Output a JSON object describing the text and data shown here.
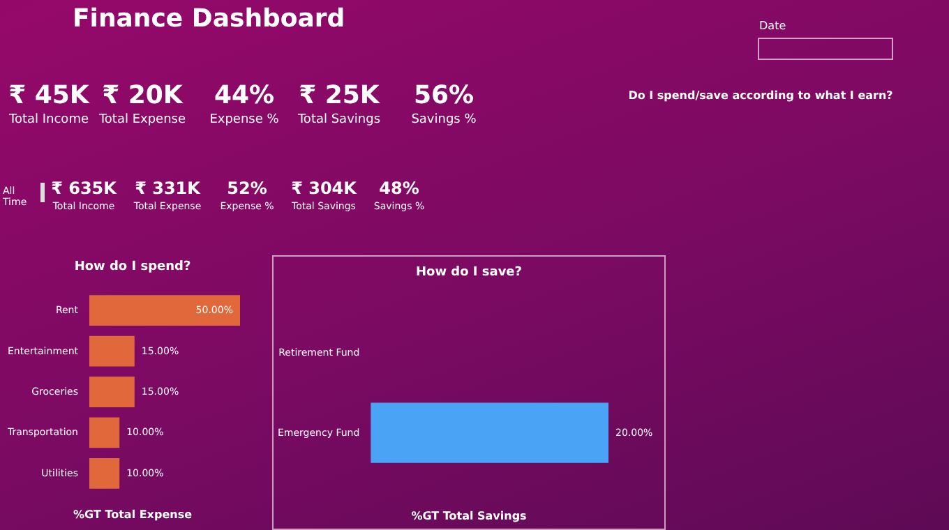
{
  "chart_data": [
    {
      "type": "other",
      "title": "Finance Dashboard",
      "annotations": [
        "₹ 45K",
        "Total Income",
        "₹ 20K",
        "Total Expense",
        "44%",
        "Expense %",
        "₹ 25K",
        "Total Savings",
        "56%",
        "Savings %",
        "All Time",
        "₹ 635K",
        "Total Income",
        "₹ 331K",
        "Total Expense",
        "52%",
        "Expense %",
        "₹ 304K",
        "Total Savings",
        "48%",
        "Savings %",
        "Date",
        "Do I spend/save according to what I earn?"
      ]
    },
    {
      "type": "bar",
      "orientation": "horizontal",
      "title": "How do I spend?",
      "xlabel": "%GT Total Expense",
      "categories": [
        "Rent",
        "Entertainment",
        "Groceries",
        "Transportation",
        "Utilities"
      ],
      "values": [
        50,
        15,
        15,
        10,
        10
      ],
      "value_labels": [
        "50.00%",
        "15.00%",
        "15.00%",
        "10.00%",
        "10.00%"
      ],
      "color": "#e0683a",
      "tick_labels": "y"
    },
    {
      "type": "bar",
      "orientation": "horizontal",
      "title": "How do I save?",
      "xlabel": "%GT Total Savings",
      "categories": [
        "Retirement Fund",
        "Emergency Fund"
      ],
      "values": [
        null,
        20
      ],
      "value_labels": [
        null,
        "20.00%"
      ],
      "color": "#4aa3f5",
      "tick_labels": "y"
    }
  ]
}
